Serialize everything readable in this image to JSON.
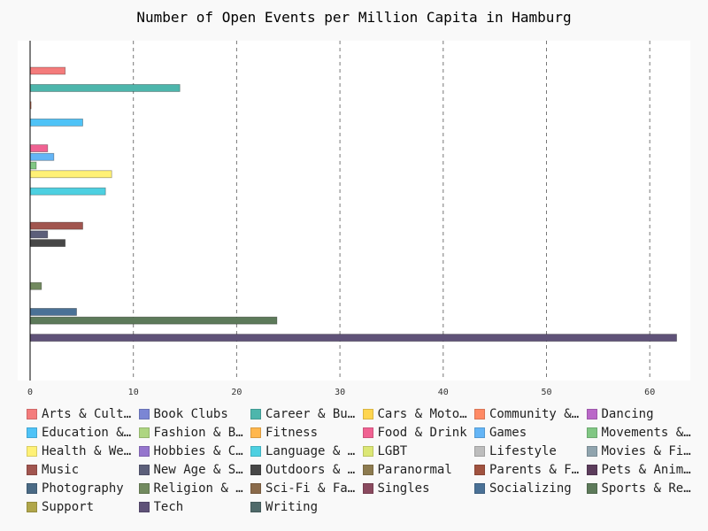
{
  "chart_data": {
    "type": "bar",
    "orientation": "horizontal",
    "title": "Number of Open Events per Million Capita in Hamburg",
    "xlim": [
      0,
      63.5
    ],
    "x_ticks": [
      0,
      10,
      20,
      30,
      40,
      50,
      60
    ],
    "grid": "vertical dashed",
    "legend_position": "bottom",
    "series": [
      {
        "name": "Arts & Culture",
        "value": 3.4,
        "color": "#f47c7c"
      },
      {
        "name": "Book Clubs",
        "value": 0,
        "color": "#7b86d4"
      },
      {
        "name": "Career & Business",
        "value": 14.5,
        "color": "#4db6ac"
      },
      {
        "name": "Cars & Motorcycles",
        "value": 0,
        "color": "#ffd54f"
      },
      {
        "name": "Community & Environment",
        "value": 0.1,
        "color": "#ff8a65"
      },
      {
        "name": "Dancing",
        "value": 0,
        "color": "#ba68c8"
      },
      {
        "name": "Education & Learning",
        "value": 5.1,
        "color": "#4fc3f7"
      },
      {
        "name": "Fashion & Beauty",
        "value": 0,
        "color": "#aed581"
      },
      {
        "name": "Fitness",
        "value": 0,
        "color": "#ffb74d"
      },
      {
        "name": "Food & Drink",
        "value": 1.7,
        "color": "#f06292"
      },
      {
        "name": "Games",
        "value": 2.3,
        "color": "#64b5f6"
      },
      {
        "name": "Movements & Politics",
        "value": 0.6,
        "color": "#81c784"
      },
      {
        "name": "Health & Wellbeing",
        "value": 7.9,
        "color": "#fff176"
      },
      {
        "name": "Hobbies & Crafts",
        "value": 0,
        "color": "#9575cd"
      },
      {
        "name": "Language & Ethnic Identity",
        "value": 7.3,
        "color": "#4dd0e1"
      },
      {
        "name": "LGBT",
        "value": 0,
        "color": "#dce775"
      },
      {
        "name": "Lifestyle",
        "value": 0,
        "color": "#bdbdbd"
      },
      {
        "name": "Movies & Film",
        "value": 0,
        "color": "#90a4ae"
      },
      {
        "name": "Music",
        "value": 5.1,
        "color": "#a1554f"
      },
      {
        "name": "New Age & Spirituality",
        "value": 1.7,
        "color": "#5c5f7a"
      },
      {
        "name": "Outdoors & Adventure",
        "value": 3.4,
        "color": "#474747"
      },
      {
        "name": "Paranormal",
        "value": 0,
        "color": "#8d7b4f"
      },
      {
        "name": "Parents & Family",
        "value": 0,
        "color": "#a0523f"
      },
      {
        "name": "Pets & Animals",
        "value": 0,
        "color": "#5c3d5c"
      },
      {
        "name": "Photography",
        "value": 0,
        "color": "#4a6a85"
      },
      {
        "name": "Religion & Beliefs",
        "value": 1.1,
        "color": "#728a5f"
      },
      {
        "name": "Sci-Fi & Fantasy",
        "value": 0,
        "color": "#8a6a4a"
      },
      {
        "name": "Singles",
        "value": 0,
        "color": "#8a4a5f"
      },
      {
        "name": "Socializing",
        "value": 4.5,
        "color": "#4a7196"
      },
      {
        "name": "Sports & Recreation",
        "value": 23.9,
        "color": "#5d7a5a"
      },
      {
        "name": "Support",
        "value": 0,
        "color": "#b0a64a"
      },
      {
        "name": "Tech",
        "value": 62.6,
        "color": "#5f5278"
      },
      {
        "name": "Writing",
        "value": 0,
        "color": "#4f6a6a"
      }
    ],
    "legend_labels": [
      "Arts & Cultu…",
      "Book Clubs",
      "Career & Bus…",
      "Cars & Motor…",
      "Community & …",
      "Dancing",
      "Education & …",
      "Fashion & Be…",
      "Fitness",
      "Food & Drink",
      "Games",
      "Movements & …",
      "Health & Wel…",
      "Hobbies & Cr…",
      "Language & E…",
      "LGBT",
      "Lifestyle",
      "Movies & Film",
      "Music",
      "New Age & Sp…",
      "Outdoors & A…",
      "Paranormal",
      "Parents & Fa…",
      "Pets & Anima…",
      "Photography",
      "Religion & B…",
      "Sci-Fi & Fan…",
      "Singles",
      "Socializing",
      "Sports & Rec…",
      "Support",
      "Tech",
      "Writing"
    ]
  }
}
